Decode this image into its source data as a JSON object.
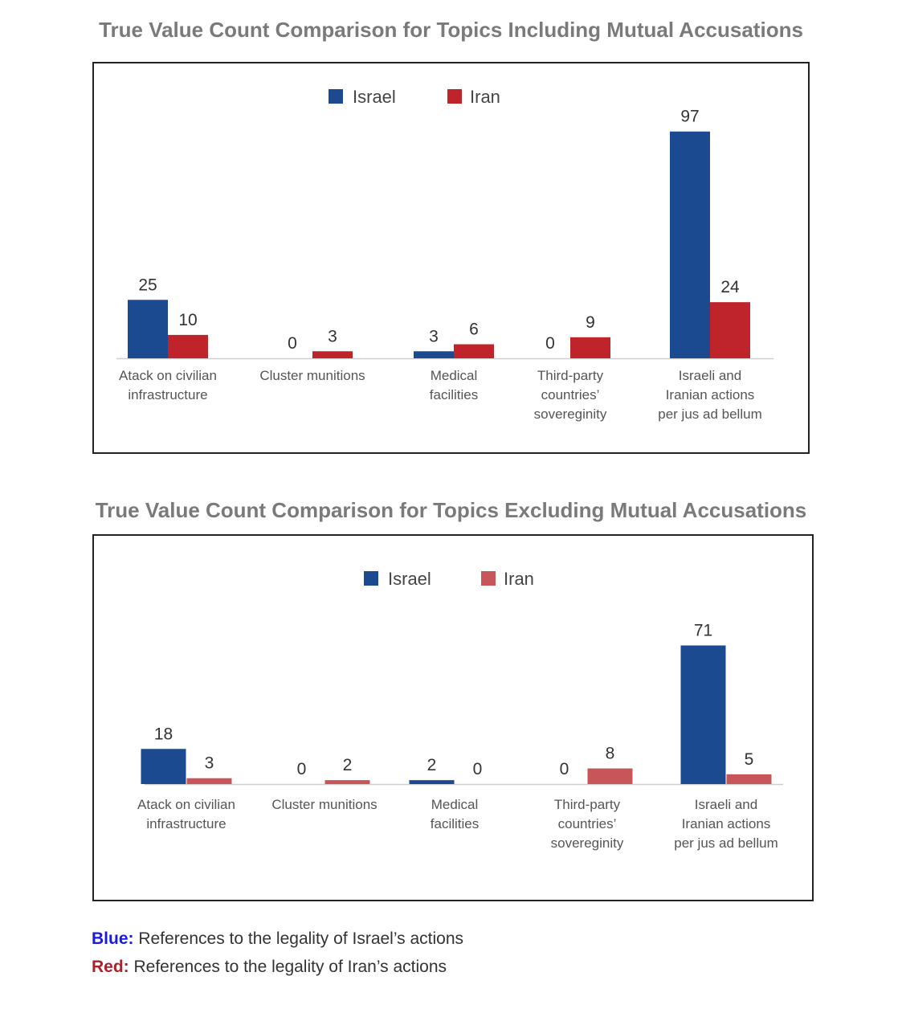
{
  "charts": [
    {
      "title": "True Value Count Comparison for Topics Including Mutual Accusations",
      "legend": {
        "israel": "Israel",
        "iran": "Iran"
      }
    },
    {
      "title": "True Value Count Comparison for Topics Excluding Mutual Accusations",
      "legend": {
        "israel": "Israel",
        "iran": "Iran"
      }
    }
  ],
  "footnotes": {
    "blue_key": "Blue:",
    "blue_text": " References to the legality of Israel’s actions",
    "red_key": "Red:",
    "red_text": " References to the legality of Iran’s actions"
  },
  "colors": {
    "israel": "#1b4a90",
    "iran_top": "#c0242b",
    "iran_bottom": "#c8555a",
    "title_gray": "#7a7a7a",
    "blue_key": "#1a1adb",
    "red_key": "#b0202a"
  },
  "chart_data": [
    {
      "type": "bar",
      "title": "True Value Count Comparison for Topics Including Mutual Accusations",
      "categories": [
        [
          "Atack on civilian",
          "infrastructure"
        ],
        [
          "Cluster munitions"
        ],
        [
          "Medical",
          "facilities"
        ],
        [
          "Third-party",
          "countries’",
          "sovereginity"
        ],
        [
          "Israeli and",
          "Iranian actions",
          "per jus ad bellum"
        ]
      ],
      "series": [
        {
          "name": "Israel",
          "values": [
            25,
            0,
            3,
            0,
            97
          ]
        },
        {
          "name": "Iran",
          "values": [
            10,
            3,
            6,
            9,
            24
          ]
        }
      ],
      "ylim": [
        0,
        100
      ],
      "grid": false,
      "legend_position": "top-center"
    },
    {
      "type": "bar",
      "title": "True Value Count Comparison for Topics Excluding Mutual Accusations",
      "categories": [
        [
          "Atack on civilian",
          "infrastructure"
        ],
        [
          "Cluster munitions"
        ],
        [
          "Medical",
          "facilities"
        ],
        [
          "Third-party",
          "countries’",
          "sovereginity"
        ],
        [
          "Israeli and",
          "Iranian actions",
          "per jus ad bellum"
        ]
      ],
      "series": [
        {
          "name": "Israel",
          "values": [
            18,
            0,
            2,
            0,
            71
          ]
        },
        {
          "name": "Iran",
          "values": [
            3,
            2,
            0,
            8,
            5
          ]
        }
      ],
      "ylim": [
        0,
        75
      ],
      "grid": false,
      "legend_position": "top-center"
    }
  ]
}
